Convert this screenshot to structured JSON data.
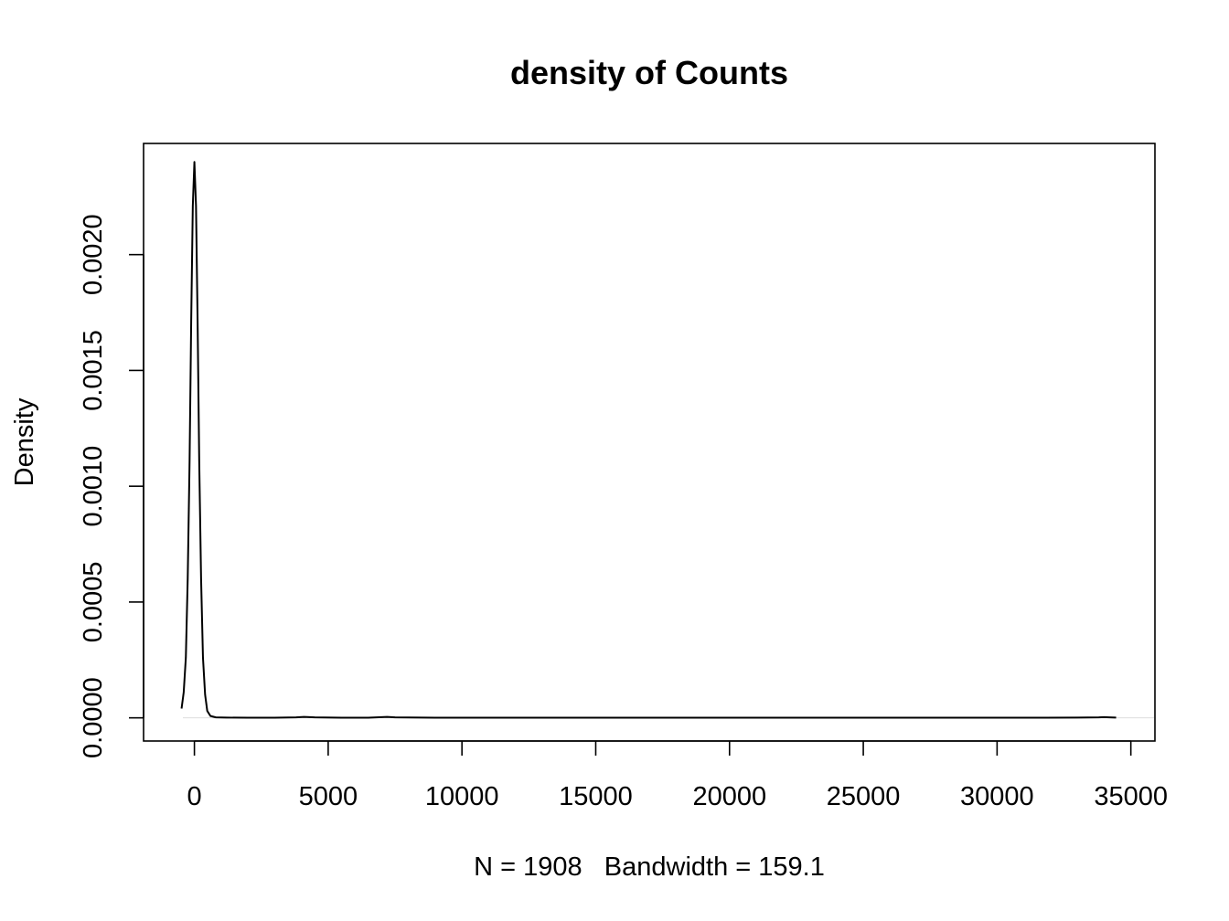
{
  "chart_data": {
    "type": "line",
    "title": "density of Counts",
    "xlabel": "N = 1908   Bandwidth = 159.1",
    "ylabel": "Density",
    "xlim": [
      -1900,
      35900
    ],
    "ylim": [
      -0.0001,
      0.00248
    ],
    "x_ticks": [
      0,
      5000,
      10000,
      15000,
      20000,
      25000,
      30000,
      35000
    ],
    "x_tick_labels": [
      "0",
      "5000",
      "10000",
      "15000",
      "20000",
      "25000",
      "30000",
      "35000"
    ],
    "y_ticks": [
      0.0,
      0.0005,
      0.001,
      0.0015,
      0.002
    ],
    "y_tick_labels": [
      "0.0000",
      "0.0005",
      "0.0010",
      "0.0015",
      "0.0020"
    ],
    "grid": false,
    "series": [
      {
        "x": [
          -480,
          -400,
          -320,
          -250,
          -180,
          -120,
          -60,
          0,
          60,
          120,
          180,
          250,
          320,
          400,
          480,
          600,
          800,
          1200,
          2000,
          3000,
          3800,
          4100,
          4500,
          5500,
          6500,
          7000,
          7200,
          7500,
          9000,
          12000,
          15000,
          18000,
          21000,
          24000,
          27000,
          30000,
          33000,
          33800,
          34000,
          34200,
          34450
        ],
        "y": [
          4e-05,
          0.00011,
          0.00026,
          0.0006,
          0.00111,
          0.00171,
          0.00221,
          0.0024,
          0.00221,
          0.00171,
          0.00111,
          0.0006,
          0.00026,
          0.0001,
          3e-05,
          8e-06,
          2e-06,
          1e-06,
          5e-07,
          5e-07,
          2e-06,
          4e-06,
          2e-06,
          5e-07,
          5e-07,
          3e-06,
          4e-06,
          2e-06,
          5e-07,
          5e-07,
          5e-07,
          5e-07,
          5e-07,
          5e-07,
          5e-07,
          5e-07,
          1e-06,
          2e-06,
          3e-06,
          2e-06,
          1e-06
        ]
      }
    ]
  }
}
